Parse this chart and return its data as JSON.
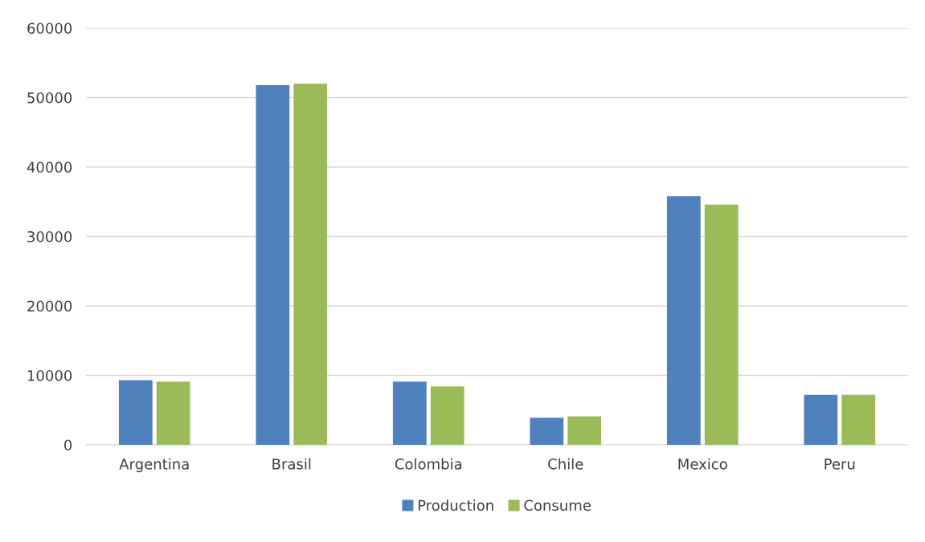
{
  "chart_data": {
    "type": "bar",
    "categories": [
      "Argentina",
      "Brasil",
      "Colombia",
      "Chile",
      "Mexico",
      "Peru"
    ],
    "series": [
      {
        "name": "Production",
        "color": "#4f81bd",
        "values": [
          9300,
          51800,
          9100,
          3900,
          35800,
          7200
        ]
      },
      {
        "name": "Consume",
        "color": "#9bbb59",
        "values": [
          9100,
          52000,
          8400,
          4100,
          34600,
          7200
        ]
      }
    ],
    "ylim": [
      0,
      60000
    ],
    "yticks": [
      0,
      10000,
      20000,
      30000,
      40000,
      50000,
      60000
    ],
    "grid": "y",
    "legend": "bottom"
  }
}
